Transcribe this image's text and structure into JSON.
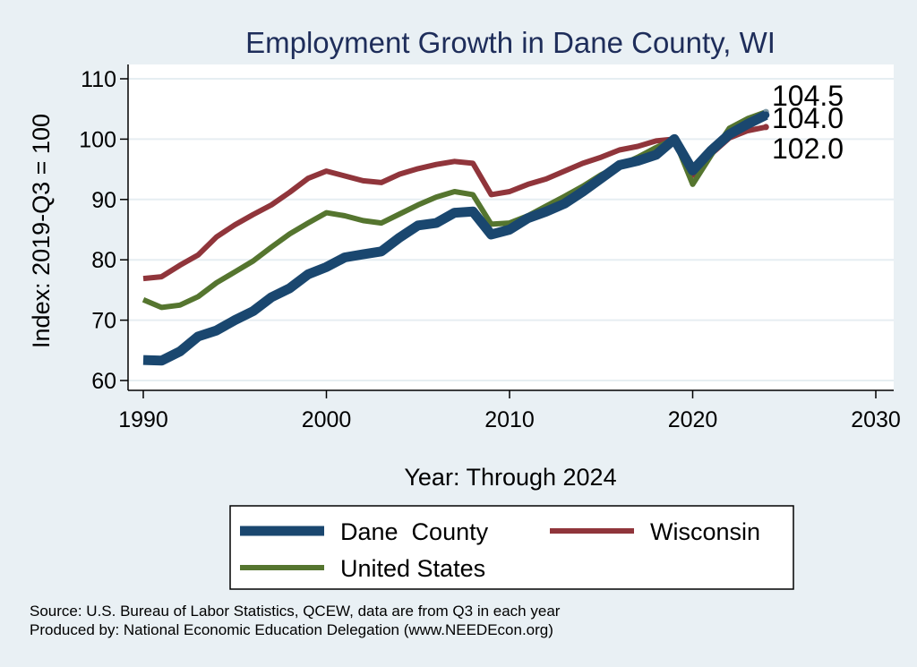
{
  "chart_data": {
    "type": "line",
    "title": "Employment Growth in Dane County, WI",
    "xlabel": "Year: Through 2024",
    "ylabel": "Index: 2019-Q3 = 100",
    "xlim": [
      1990,
      2030
    ],
    "ylim": [
      60,
      110
    ],
    "xticks": [
      1990,
      2000,
      2010,
      2020,
      2030
    ],
    "yticks": [
      60,
      70,
      80,
      90,
      100,
      110
    ],
    "grid": true,
    "x": [
      1990,
      1991,
      1992,
      1993,
      1994,
      1995,
      1996,
      1997,
      1998,
      1999,
      2000,
      2001,
      2002,
      2003,
      2004,
      2005,
      2006,
      2007,
      2008,
      2009,
      2010,
      2011,
      2012,
      2013,
      2014,
      2015,
      2016,
      2017,
      2018,
      2019,
      2020,
      2021,
      2022,
      2023,
      2024
    ],
    "series": [
      {
        "name": "Dane  County",
        "color": "#1a476f",
        "values": [
          63.4,
          63.3,
          64.8,
          67.3,
          68.3,
          70.0,
          71.5,
          73.8,
          75.3,
          77.6,
          78.8,
          80.4,
          80.9,
          81.4,
          83.7,
          85.7,
          86.1,
          87.8,
          88.0,
          84.2,
          85.0,
          86.9,
          88.0,
          89.3,
          91.3,
          93.5,
          95.7,
          96.4,
          97.4,
          100.0,
          94.8,
          98.1,
          100.8,
          102.5,
          104.0
        ],
        "end_label": "104.0"
      },
      {
        "name": "Wisconsin",
        "color": "#90353b",
        "values": [
          76.9,
          77.2,
          79.1,
          80.8,
          83.8,
          85.8,
          87.5,
          89.1,
          91.2,
          93.5,
          94.7,
          93.9,
          93.1,
          92.8,
          94.2,
          95.1,
          95.8,
          96.3,
          96.0,
          90.8,
          91.3,
          92.5,
          93.4,
          94.7,
          96.0,
          97.0,
          98.2,
          98.8,
          99.7,
          100.0,
          94.0,
          97.5,
          100.2,
          101.4,
          102.0
        ],
        "end_label": "102.0"
      },
      {
        "name": "United States",
        "color": "#55752f",
        "values": [
          73.4,
          72.1,
          72.5,
          73.9,
          76.2,
          78.0,
          79.8,
          82.1,
          84.3,
          86.1,
          87.8,
          87.3,
          86.5,
          86.1,
          87.6,
          89.1,
          90.4,
          91.3,
          90.8,
          85.9,
          86.1,
          87.3,
          88.9,
          90.5,
          92.2,
          94.1,
          95.6,
          97.0,
          98.6,
          100.0,
          92.5,
          97.3,
          101.8,
          103.4,
          104.5
        ],
        "end_label": "104.5"
      }
    ],
    "legend": {
      "position": "bottom",
      "order": [
        "Dane  County",
        "Wisconsin",
        "United States"
      ]
    }
  },
  "source": {
    "line1": "Source: U.S. Bureau of Labor Statistics, QCEW, data are from Q3 in each year",
    "line2": "Produced by: National Economic Education Delegation (www.NEEDEcon.org)"
  }
}
